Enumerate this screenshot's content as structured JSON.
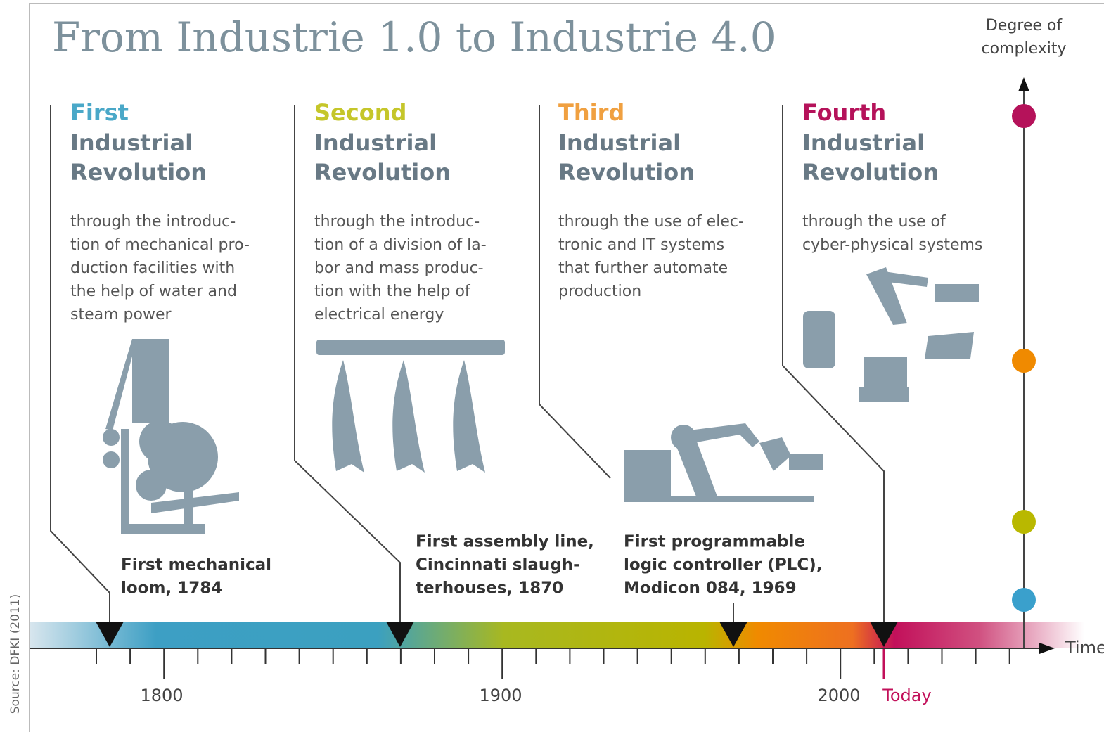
{
  "title": "From Industrie 1.0 to Industrie 4.0",
  "y_axis_label": [
    "Degree of",
    "complexity"
  ],
  "x_axis_label": "Time",
  "source": "Source: DFKI (2011)",
  "revolutions": [
    {
      "ordinal": "First",
      "heading": [
        "Industrial",
        "Revolution"
      ],
      "description": [
        "through the introduc-",
        "tion of mechanical pro-",
        "duction facilities with",
        "the help of water and",
        "steam power"
      ],
      "milestone": [
        "First mechanical",
        "loom, 1784"
      ]
    },
    {
      "ordinal": "Second",
      "heading": [
        "Industrial",
        "Revolution"
      ],
      "description": [
        "through the introduc-",
        "tion of a division of la-",
        "bor and mass produc-",
        "tion with the help of",
        "electrical energy"
      ],
      "milestone": [
        "First assembly line,",
        "Cincinnati slaugh-",
        "terhouses, 1870"
      ]
    },
    {
      "ordinal": "Third",
      "heading": [
        "Industrial",
        "Revolution"
      ],
      "description": [
        "through the use of elec-",
        "tronic and IT systems",
        "that further automate",
        "production"
      ],
      "milestone": [
        "First programmable",
        "logic controller (PLC),",
        "Modicon 084, 1969"
      ]
    },
    {
      "ordinal": "Fourth",
      "heading": [
        "Industrial",
        "Revolution"
      ],
      "description": [
        "through the use of",
        "cyber-physical systems"
      ],
      "milestone": []
    }
  ],
  "timeline": {
    "labels": [
      "1800",
      "1900",
      "2000"
    ],
    "today": "Today"
  }
}
